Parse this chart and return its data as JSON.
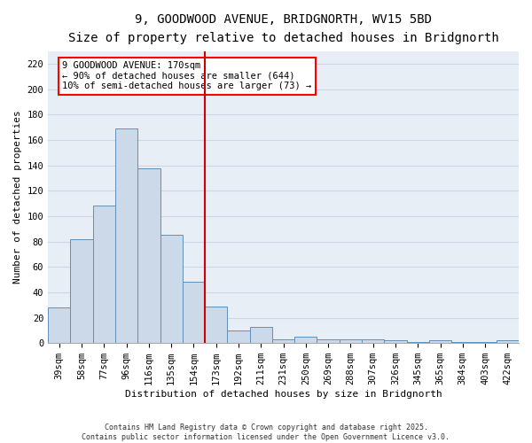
{
  "title1": "9, GOODWOOD AVENUE, BRIDGNORTH, WV15 5BD",
  "title2": "Size of property relative to detached houses in Bridgnorth",
  "xlabel": "Distribution of detached houses by size in Bridgnorth",
  "ylabel": "Number of detached properties",
  "categories": [
    "39sqm",
    "58sqm",
    "77sqm",
    "96sqm",
    "116sqm",
    "135sqm",
    "154sqm",
    "173sqm",
    "192sqm",
    "211sqm",
    "231sqm",
    "250sqm",
    "269sqm",
    "288sqm",
    "307sqm",
    "326sqm",
    "345sqm",
    "365sqm",
    "384sqm",
    "403sqm",
    "422sqm"
  ],
  "values": [
    28,
    82,
    108,
    169,
    138,
    85,
    48,
    29,
    10,
    13,
    3,
    5,
    3,
    3,
    3,
    2,
    1,
    2,
    1,
    1,
    2
  ],
  "bar_color": "#ccd9e8",
  "bar_edge_color": "#6090b8",
  "vline_x_index": 6,
  "vline_color": "#cc0000",
  "annotation_text": "9 GOODWOOD AVENUE: 170sqm\n← 90% of detached houses are smaller (644)\n10% of semi-detached houses are larger (73) →",
  "ylim": [
    0,
    230
  ],
  "yticks": [
    0,
    20,
    40,
    60,
    80,
    100,
    120,
    140,
    160,
    180,
    200,
    220
  ],
  "grid_color": "#ccd6e8",
  "bg_color": "#e8eef5",
  "footer": "Contains HM Land Registry data © Crown copyright and database right 2025.\nContains public sector information licensed under the Open Government Licence v3.0.",
  "title1_fontsize": 10,
  "title2_fontsize": 9,
  "xlabel_fontsize": 8,
  "ylabel_fontsize": 8,
  "tick_fontsize": 7.5,
  "annot_fontsize": 7.5,
  "footer_fontsize": 6
}
